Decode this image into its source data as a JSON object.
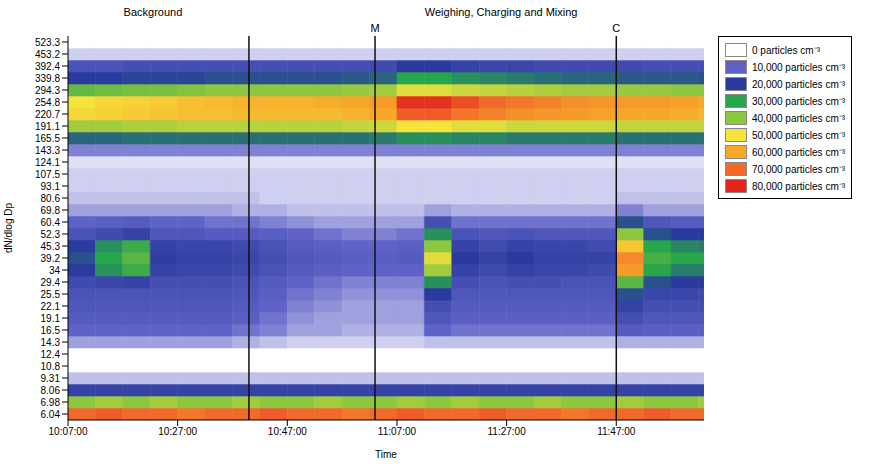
{
  "chart_data": {
    "type": "heatmap",
    "x_label": "Time",
    "y_label": "dN/dlog Dp",
    "x": [
      "10:07:00",
      "10:12:00",
      "10:17:00",
      "10:22:00",
      "10:27:00",
      "10:32:00",
      "10:37:00",
      "10:42:00",
      "10:47:00",
      "10:52:00",
      "10:57:00",
      "11:02:00",
      "11:07:00",
      "11:12:00",
      "11:17:00",
      "11:22:00",
      "11:27:00",
      "11:32:00",
      "11:37:00",
      "11:42:00",
      "11:47:00",
      "11:52:00",
      "11:57:00",
      "12:02:00"
    ],
    "xlim": [
      "10:07:00",
      "12:03:00"
    ],
    "xticks": [
      "10:07:00",
      "10:27:00",
      "10:47:00",
      "11:07:00",
      "11:27:00",
      "11:47:00"
    ],
    "y": [
      "6.04",
      "6.98",
      "8.06",
      "9.31",
      "10.8",
      "12.4",
      "14.3",
      "16.5",
      "19.1",
      "22.1",
      "25.5",
      "29.4",
      "34",
      "39.2",
      "45.3",
      "52.3",
      "60.4",
      "69.8",
      "80.6",
      "93.1",
      "107.5",
      "124.1",
      "143.3",
      "165.5",
      "191.1",
      "220.7",
      "254.8",
      "294.3",
      "339.8",
      "392.4",
      "453.2",
      "523.3"
    ],
    "z": [
      [
        70000,
        72000,
        70000,
        70000,
        68000,
        70000,
        70000,
        72000,
        70000,
        70000,
        68000,
        70000,
        72000,
        70000,
        70000,
        72000,
        70000,
        70000,
        68000,
        70000,
        70000,
        72000,
        70000,
        70000
      ],
      [
        40000,
        42000,
        40000,
        42000,
        40000,
        40000,
        42000,
        40000,
        40000,
        42000,
        40000,
        40000,
        42000,
        40000,
        42000,
        40000,
        40000,
        42000,
        40000,
        40000,
        42000,
        40000,
        40000,
        42000
      ],
      [
        18000,
        18000,
        18000,
        18000,
        18000,
        18000,
        18000,
        18000,
        18000,
        18000,
        18000,
        18000,
        18000,
        18000,
        18000,
        18000,
        18000,
        18000,
        18000,
        18000,
        18000,
        18000,
        18000,
        18000
      ],
      [
        4000,
        4000,
        4000,
        4000,
        4000,
        4000,
        4000,
        4000,
        4000,
        4000,
        4000,
        4000,
        4000,
        4000,
        4000,
        4000,
        4000,
        4000,
        4000,
        4000,
        4000,
        4000,
        4000,
        4000
      ],
      [
        0,
        0,
        0,
        0,
        0,
        0,
        0,
        0,
        0,
        0,
        0,
        0,
        0,
        0,
        0,
        0,
        0,
        0,
        0,
        0,
        0,
        0,
        0,
        0
      ],
      [
        0,
        0,
        0,
        0,
        0,
        0,
        0,
        0,
        0,
        0,
        0,
        0,
        0,
        0,
        0,
        0,
        0,
        0,
        0,
        0,
        0,
        0,
        0,
        0
      ],
      [
        6000,
        6000,
        6000,
        6000,
        6000,
        6000,
        5000,
        4000,
        3000,
        3000,
        3000,
        3000,
        3000,
        4000,
        4000,
        4000,
        4000,
        4000,
        4000,
        4000,
        5000,
        5000,
        5000,
        5000
      ],
      [
        10000,
        10000,
        10000,
        10000,
        10000,
        10000,
        9000,
        8000,
        6000,
        6000,
        5000,
        5000,
        5000,
        10000,
        9000,
        9000,
        9000,
        9000,
        9000,
        9000,
        12000,
        11000,
        11000,
        11000
      ],
      [
        12000,
        12000,
        12000,
        12000,
        12000,
        12000,
        11000,
        9000,
        7000,
        6000,
        6000,
        6000,
        6000,
        13000,
        11000,
        11000,
        11000,
        11000,
        11000,
        11000,
        15000,
        13000,
        13000,
        13000
      ],
      [
        13000,
        13000,
        13000,
        13000,
        13000,
        13000,
        12000,
        10000,
        8000,
        7000,
        6000,
        6000,
        6000,
        15000,
        12000,
        12000,
        12000,
        12000,
        12000,
        12000,
        18000,
        15000,
        15000,
        15000
      ],
      [
        14000,
        14000,
        14000,
        14000,
        14000,
        14000,
        13000,
        11000,
        9000,
        8000,
        7000,
        7000,
        7000,
        20000,
        13000,
        13000,
        13000,
        13000,
        13000,
        13000,
        22000,
        17000,
        17000,
        16000
      ],
      [
        16000,
        17000,
        18000,
        15000,
        15000,
        15000,
        14000,
        12000,
        10000,
        9000,
        8000,
        8000,
        8000,
        28000,
        15000,
        14000,
        15000,
        15000,
        14000,
        14000,
        35000,
        22000,
        20000,
        20000
      ],
      [
        20000,
        28000,
        32000,
        18000,
        17000,
        17000,
        16000,
        14000,
        12000,
        11000,
        10000,
        10000,
        10000,
        42000,
        18000,
        16000,
        18000,
        17000,
        17000,
        16000,
        62000,
        30000,
        26000,
        26000
      ],
      [
        22000,
        30000,
        35000,
        19000,
        18000,
        18000,
        17000,
        15000,
        13000,
        12000,
        11000,
        11000,
        12000,
        48000,
        20000,
        18000,
        20000,
        18000,
        18000,
        18000,
        65000,
        33000,
        30000,
        30000
      ],
      [
        20000,
        28000,
        32000,
        18000,
        17000,
        17000,
        16000,
        14000,
        12000,
        11000,
        10000,
        10000,
        11000,
        40000,
        18000,
        16000,
        18000,
        17000,
        17000,
        16000,
        55000,
        30000,
        27000,
        26000
      ],
      [
        14000,
        16000,
        18000,
        13000,
        13000,
        12000,
        12000,
        11000,
        10000,
        9000,
        8000,
        8000,
        9000,
        28000,
        14000,
        13000,
        14000,
        13000,
        13000,
        13000,
        40000,
        22000,
        20000,
        20000
      ],
      [
        10000,
        11000,
        12000,
        10000,
        10000,
        9000,
        9000,
        8000,
        7000,
        6000,
        6000,
        6000,
        6000,
        15000,
        9000,
        9000,
        9000,
        9000,
        9000,
        9000,
        22000,
        13000,
        12000,
        12000
      ],
      [
        6000,
        6000,
        6000,
        6000,
        6000,
        6000,
        5000,
        5000,
        4000,
        4000,
        4000,
        4000,
        4000,
        6000,
        5000,
        5000,
        5000,
        5000,
        5000,
        5000,
        8000,
        6000,
        6000,
        6000
      ],
      [
        4000,
        4000,
        4000,
        4000,
        4000,
        4000,
        4000,
        3000,
        3000,
        3000,
        3000,
        3000,
        3000,
        3000,
        3000,
        3000,
        3000,
        3000,
        3000,
        3000,
        4000,
        4000,
        4000,
        4000
      ],
      [
        3000,
        3000,
        3000,
        3000,
        3000,
        3000,
        3000,
        3000,
        3000,
        3000,
        3000,
        3000,
        3000,
        3000,
        3000,
        3000,
        3000,
        3000,
        3000,
        3000,
        3000,
        3000,
        3000,
        3000
      ],
      [
        3000,
        3000,
        3000,
        3000,
        3000,
        3000,
        3000,
        3000,
        3000,
        3000,
        3000,
        3000,
        3000,
        3000,
        3000,
        3000,
        3000,
        3000,
        3000,
        3000,
        3000,
        3000,
        3000,
        3000
      ],
      [
        2000,
        2000,
        2000,
        2000,
        2000,
        2000,
        2000,
        2000,
        2000,
        2000,
        2000,
        2000,
        2000,
        2000,
        2000,
        2000,
        2000,
        2000,
        2000,
        2000,
        2000,
        2000,
        2000,
        2000
      ],
      [
        8000,
        8000,
        8000,
        8000,
        8000,
        8000,
        8000,
        8000,
        8000,
        8000,
        8000,
        8000,
        8000,
        8000,
        8000,
        8000,
        8000,
        8000,
        8000,
        8000,
        8000,
        8000,
        8000,
        8000
      ],
      [
        24000,
        24000,
        25000,
        25000,
        25000,
        25000,
        25000,
        25000,
        25000,
        25000,
        25000,
        26000,
        28000,
        28000,
        27000,
        27000,
        26000,
        26000,
        26000,
        26000,
        25000,
        25000,
        25000,
        25000
      ],
      [
        42000,
        42000,
        43000,
        43000,
        44000,
        44000,
        44000,
        44000,
        44000,
        44000,
        45000,
        46000,
        50000,
        50000,
        48000,
        48000,
        46000,
        46000,
        46000,
        46000,
        45000,
        45000,
        45000,
        45000
      ],
      [
        52000,
        53000,
        54000,
        55000,
        56000,
        56000,
        57000,
        57000,
        57000,
        57000,
        58000,
        60000,
        72000,
        72000,
        68000,
        66000,
        64000,
        63000,
        62000,
        61000,
        60000,
        60000,
        59000,
        58000
      ],
      [
        50000,
        52000,
        53000,
        54000,
        56000,
        57000,
        58000,
        58000,
        58000,
        59000,
        60000,
        62000,
        78000,
        78000,
        74000,
        70000,
        68000,
        66000,
        64000,
        63000,
        62000,
        62000,
        61000,
        60000
      ],
      [
        36000,
        37000,
        38000,
        38000,
        39000,
        40000,
        40000,
        40000,
        40000,
        40000,
        41000,
        42000,
        48000,
        48000,
        46000,
        45000,
        44000,
        43000,
        42000,
        42000,
        41000,
        41000,
        40000,
        40000
      ],
      [
        20000,
        20000,
        21000,
        21000,
        21000,
        22000,
        22000,
        22000,
        22000,
        22000,
        23000,
        24000,
        30000,
        30000,
        28000,
        27000,
        26000,
        25000,
        24000,
        24000,
        23000,
        23000,
        23000,
        22000
      ],
      [
        14000,
        14000,
        15000,
        15000,
        15000,
        15000,
        15000,
        15000,
        15000,
        15000,
        15000,
        16000,
        20000,
        20000,
        18000,
        17000,
        17000,
        16000,
        16000,
        16000,
        16000,
        15000,
        15000,
        15000
      ],
      [
        3000,
        3000,
        3000,
        3000,
        3000,
        3000,
        3000,
        3000,
        3000,
        3000,
        3000,
        3000,
        3000,
        3000,
        3000,
        3000,
        3000,
        3000,
        3000,
        3000,
        3000,
        3000,
        3000,
        3000
      ],
      [
        0,
        0,
        0,
        0,
        0,
        0,
        0,
        0,
        0,
        0,
        0,
        0,
        0,
        0,
        0,
        0,
        0,
        0,
        0,
        0,
        0,
        0,
        0,
        0
      ]
    ],
    "colorbar": {
      "range": [
        0,
        80000
      ],
      "ticks": [
        {
          "value": 0,
          "label": "0 particles cm⁻³",
          "color": "#ffffff"
        },
        {
          "value": 10000,
          "label": "10,000 particles cm⁻³",
          "color": "#5f63c8"
        },
        {
          "value": 20000,
          "label": "20,000 particles cm⁻³",
          "color": "#2b3a9e"
        },
        {
          "value": 30000,
          "label": "30,000 particles cm⁻³",
          "color": "#27a64b"
        },
        {
          "value": 40000,
          "label": "40,000 particles cm⁻³",
          "color": "#8dc63f"
        },
        {
          "value": 50000,
          "label": "50,000 particles cm⁻³",
          "color": "#f6e33c"
        },
        {
          "value": 60000,
          "label": "60,000 particles cm⁻³",
          "color": "#f7a72a"
        },
        {
          "value": 70000,
          "label": "70,000 particles cm⁻³",
          "color": "#f26a2b"
        },
        {
          "value": 80000,
          "label": "80,000 particles cm⁻³",
          "color": "#e2231f"
        }
      ]
    },
    "legend": "right",
    "vlines": [
      {
        "x": "10:40:00"
      },
      {
        "x": "11:03:00",
        "label": "M"
      },
      {
        "x": "11:47:00",
        "label": "C"
      }
    ],
    "annotations": [
      {
        "text": "Background",
        "x": "10:22:30"
      },
      {
        "text": "Weighing, Charging and Mixing",
        "x": "11:26:00"
      }
    ]
  }
}
